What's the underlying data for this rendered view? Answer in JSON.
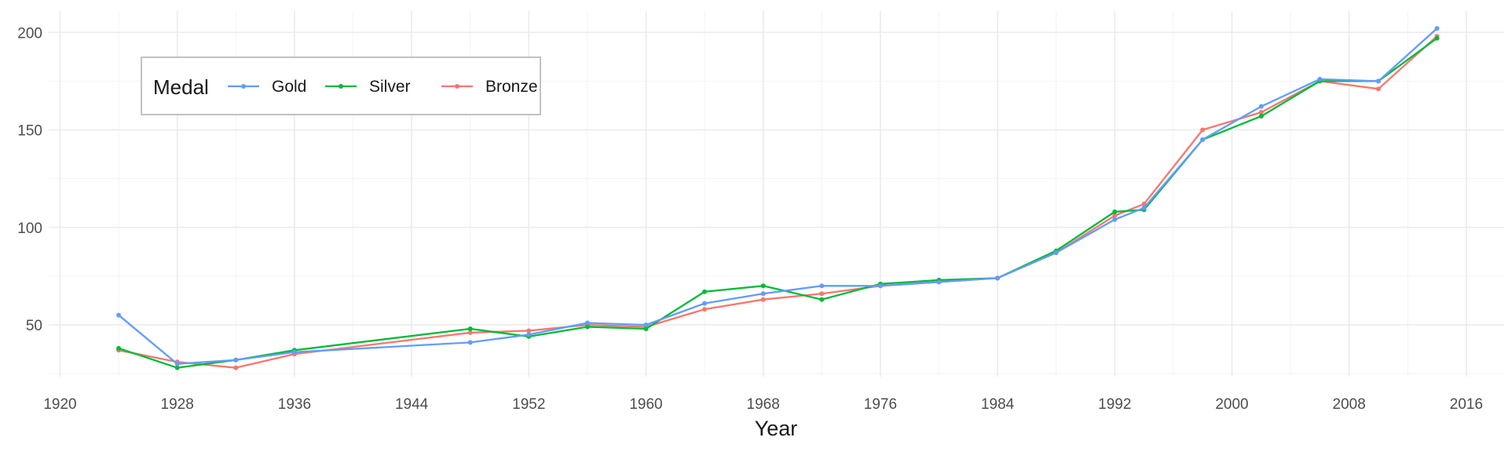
{
  "chart_data": {
    "type": "line",
    "title": "",
    "xlabel": "Year",
    "ylabel": "",
    "xlim": [
      1920,
      2018
    ],
    "ylim": [
      20,
      210
    ],
    "x_ticks": [
      1920,
      1928,
      1936,
      1944,
      1952,
      1960,
      1968,
      1976,
      1984,
      1992,
      2000,
      2008,
      2016
    ],
    "y_ticks": [
      50,
      100,
      150,
      200
    ],
    "x_tick_labels": [
      "1920",
      "1928",
      "1936",
      "1944",
      "1952",
      "1960",
      "1968",
      "1976",
      "1984",
      "1992",
      "2000",
      "2008",
      "2016"
    ],
    "y_tick_labels": [
      "50",
      "100",
      "150",
      "200"
    ],
    "grid": true,
    "legend": {
      "title": "Medal",
      "placement": "top-left",
      "entries": [
        "Gold",
        "Silver",
        "Bronze"
      ]
    },
    "x": [
      1924,
      1928,
      1932,
      1936,
      1948,
      1952,
      1956,
      1960,
      1964,
      1968,
      1972,
      1976,
      1980,
      1984,
      1988,
      1992,
      1994,
      1998,
      2002,
      2006,
      2010,
      2014
    ],
    "series": [
      {
        "name": "Bronze",
        "color": "#F8766D",
        "values": [
          37,
          31,
          28,
          35,
          46,
          47,
          50,
          49,
          58,
          63,
          66,
          70,
          72,
          74,
          87,
          106,
          112,
          150,
          159,
          175,
          171,
          198
        ]
      },
      {
        "name": "Silver",
        "color": "#00BA38",
        "values": [
          38,
          28,
          32,
          37,
          48,
          44,
          49,
          48,
          67,
          70,
          63,
          71,
          73,
          74,
          88,
          108,
          109,
          145,
          157,
          175,
          175,
          197
        ]
      },
      {
        "name": "Gold",
        "color": "#619CFF",
        "values": [
          55,
          30,
          32,
          36,
          41,
          45,
          51,
          50,
          61,
          66,
          70,
          70,
          72,
          74,
          87,
          104,
          110,
          145,
          162,
          176,
          175,
          202
        ]
      }
    ]
  }
}
